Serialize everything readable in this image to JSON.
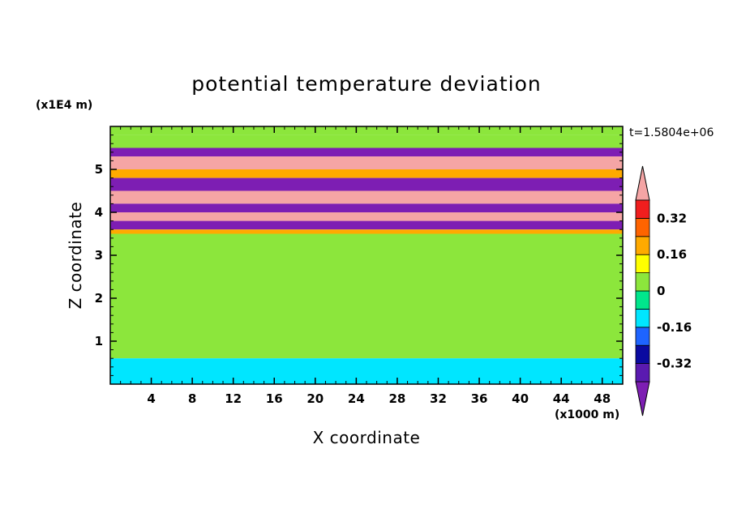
{
  "chart_data": {
    "type": "heatmap",
    "title": "potential temperature deviation",
    "xlabel": "X coordinate",
    "ylabel": "Z coordinate",
    "x_unit": "(x1000 m)",
    "y_unit": "(x1E4 m)",
    "time_label": "t=1.5804e+06",
    "xlim": [
      0,
      50
    ],
    "ylim": [
      0,
      6
    ],
    "x_ticks": [
      4,
      8,
      12,
      16,
      20,
      24,
      28,
      32,
      36,
      40,
      44,
      48
    ],
    "x_tick_labels": [
      "4",
      "8",
      "12",
      "16",
      "20",
      "24",
      "28",
      "32",
      "36",
      "40",
      "44",
      "48"
    ],
    "y_ticks": [
      1,
      2,
      3,
      4,
      5
    ],
    "y_tick_labels": [
      "1",
      "2",
      "3",
      "4",
      "5"
    ],
    "colorbar": {
      "levels": [
        -0.4,
        -0.32,
        -0.24,
        -0.16,
        -0.08,
        0,
        0.08,
        0.16,
        0.24,
        0.32,
        0.4
      ],
      "tick_values": [
        0.32,
        0.16,
        0,
        -0.16,
        -0.32
      ],
      "tick_labels": [
        "0.32",
        "0.16",
        "0",
        "-0.16",
        "-0.32"
      ],
      "colors": [
        "#7d1eb3",
        "#5a1ab0",
        "#0a0aa0",
        "#1e64ff",
        "#00e6ff",
        "#00e68c",
        "#8ce63c",
        "#ffff00",
        "#ffaa00",
        "#ff6400",
        "#f01e1e",
        "#f5a5a5"
      ],
      "extend": "both"
    },
    "bands": [
      {
        "z": [
          5.8,
          6.0
        ],
        "value": 0.05
      },
      {
        "z": [
          5.5,
          5.8
        ],
        "value": 0.0
      },
      {
        "z": [
          5.3,
          5.5
        ],
        "value": -0.45
      },
      {
        "z": [
          5.0,
          5.3
        ],
        "value": 0.45
      },
      {
        "z": [
          4.8,
          5.0
        ],
        "value": 0.2
      },
      {
        "z": [
          4.5,
          4.8
        ],
        "value": -0.45
      },
      {
        "z": [
          4.2,
          4.5
        ],
        "value": 0.45
      },
      {
        "z": [
          4.0,
          4.2
        ],
        "value": -0.45
      },
      {
        "z": [
          3.8,
          4.0
        ],
        "value": 0.45
      },
      {
        "z": [
          3.6,
          3.8
        ],
        "value": -0.45
      },
      {
        "z": [
          3.5,
          3.6
        ],
        "value": 0.2
      },
      {
        "z": [
          0.6,
          3.5
        ],
        "value": 0.0
      },
      {
        "z": [
          0.0,
          0.6
        ],
        "value": -0.1
      }
    ]
  }
}
